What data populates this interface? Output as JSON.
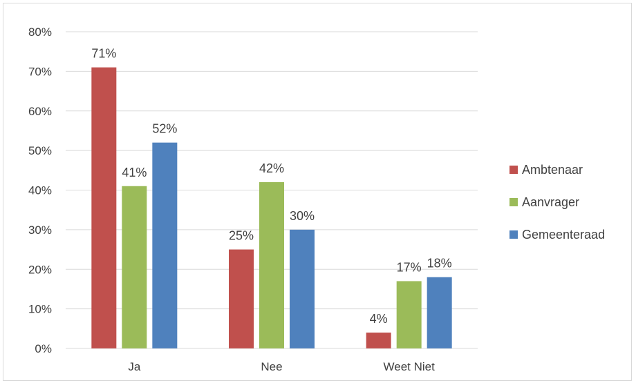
{
  "chart_data": {
    "type": "bar",
    "categories": [
      "Ja",
      "Nee",
      "Weet Niet"
    ],
    "series": [
      {
        "name": "Ambtenaar",
        "color": "#c0504d",
        "values": [
          71,
          25,
          4
        ],
        "labels": [
          "71%",
          "25%",
          "4%"
        ]
      },
      {
        "name": "Aanvrager",
        "color": "#9bbb59",
        "values": [
          41,
          42,
          17
        ],
        "labels": [
          "41%",
          "42%",
          "17%"
        ]
      },
      {
        "name": "Gemeenteraad",
        "color": "#4f81bd",
        "values": [
          52,
          30,
          18
        ],
        "labels": [
          "52%",
          "30%",
          "18%"
        ]
      }
    ],
    "ylim": [
      0,
      80
    ],
    "yticks": [
      0,
      10,
      20,
      30,
      40,
      50,
      60,
      70,
      80
    ],
    "ytick_labels": [
      "0%",
      "10%",
      "20%",
      "30%",
      "40%",
      "50%",
      "60%",
      "70%",
      "80%"
    ],
    "grid": true,
    "legend": "right",
    "title": "",
    "xlabel": "",
    "ylabel": ""
  }
}
